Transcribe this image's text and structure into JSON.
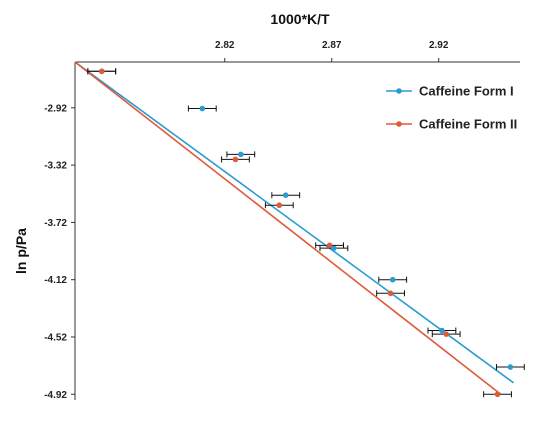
{
  "chart_data": {
    "type": "scatter",
    "title": "",
    "xlabel": "1000*K/T",
    "ylabel": "ln p/Pa",
    "x_axis_position": "top",
    "y_axis_inverted": true,
    "xlim": [
      2.75,
      2.958
    ],
    "ylim": [
      -4.96,
      -2.6
    ],
    "x_ticks": [
      2.82,
      2.87,
      2.92
    ],
    "x_tick_labels": [
      "2.82",
      "2.87",
      "2.92"
    ],
    "y_ticks": [
      -2.92,
      -3.32,
      -3.72,
      -4.12,
      -4.52,
      -4.92
    ],
    "y_tick_labels": [
      "-2.92",
      "-3.32",
      "-3.72",
      "-4.12",
      "-4.52",
      "-4.92"
    ],
    "grid": false,
    "legend_position": "top-right",
    "error_bar_halfwidth_x": 0.0065,
    "series": [
      {
        "name": "Caffeine Form I",
        "color": "#2b9bd1",
        "fit_line": {
          "x": [
            2.75,
            2.955
          ],
          "y": [
            -2.6,
            -4.84
          ]
        },
        "points": [
          {
            "x": 2.7625,
            "y": -2.665
          },
          {
            "x": 2.8095,
            "y": -2.925
          },
          {
            "x": 2.8275,
            "y": -3.245
          },
          {
            "x": 2.8485,
            "y": -3.53
          },
          {
            "x": 2.871,
            "y": -3.9
          },
          {
            "x": 2.8985,
            "y": -4.12
          },
          {
            "x": 2.9215,
            "y": -4.475
          },
          {
            "x": 2.9535,
            "y": -4.73
          }
        ]
      },
      {
        "name": "Caffeine Form II",
        "color": "#e05a38",
        "fit_line": {
          "x": [
            2.75,
            2.949
          ],
          "y": [
            -2.6,
            -4.92
          ]
        },
        "points": [
          {
            "x": 2.7625,
            "y": -2.665
          },
          {
            "x": 2.825,
            "y": -3.28
          },
          {
            "x": 2.8455,
            "y": -3.6
          },
          {
            "x": 2.869,
            "y": -3.88
          },
          {
            "x": 2.8975,
            "y": -4.215
          },
          {
            "x": 2.9235,
            "y": -4.5
          },
          {
            "x": 2.9475,
            "y": -4.92
          }
        ]
      }
    ]
  }
}
